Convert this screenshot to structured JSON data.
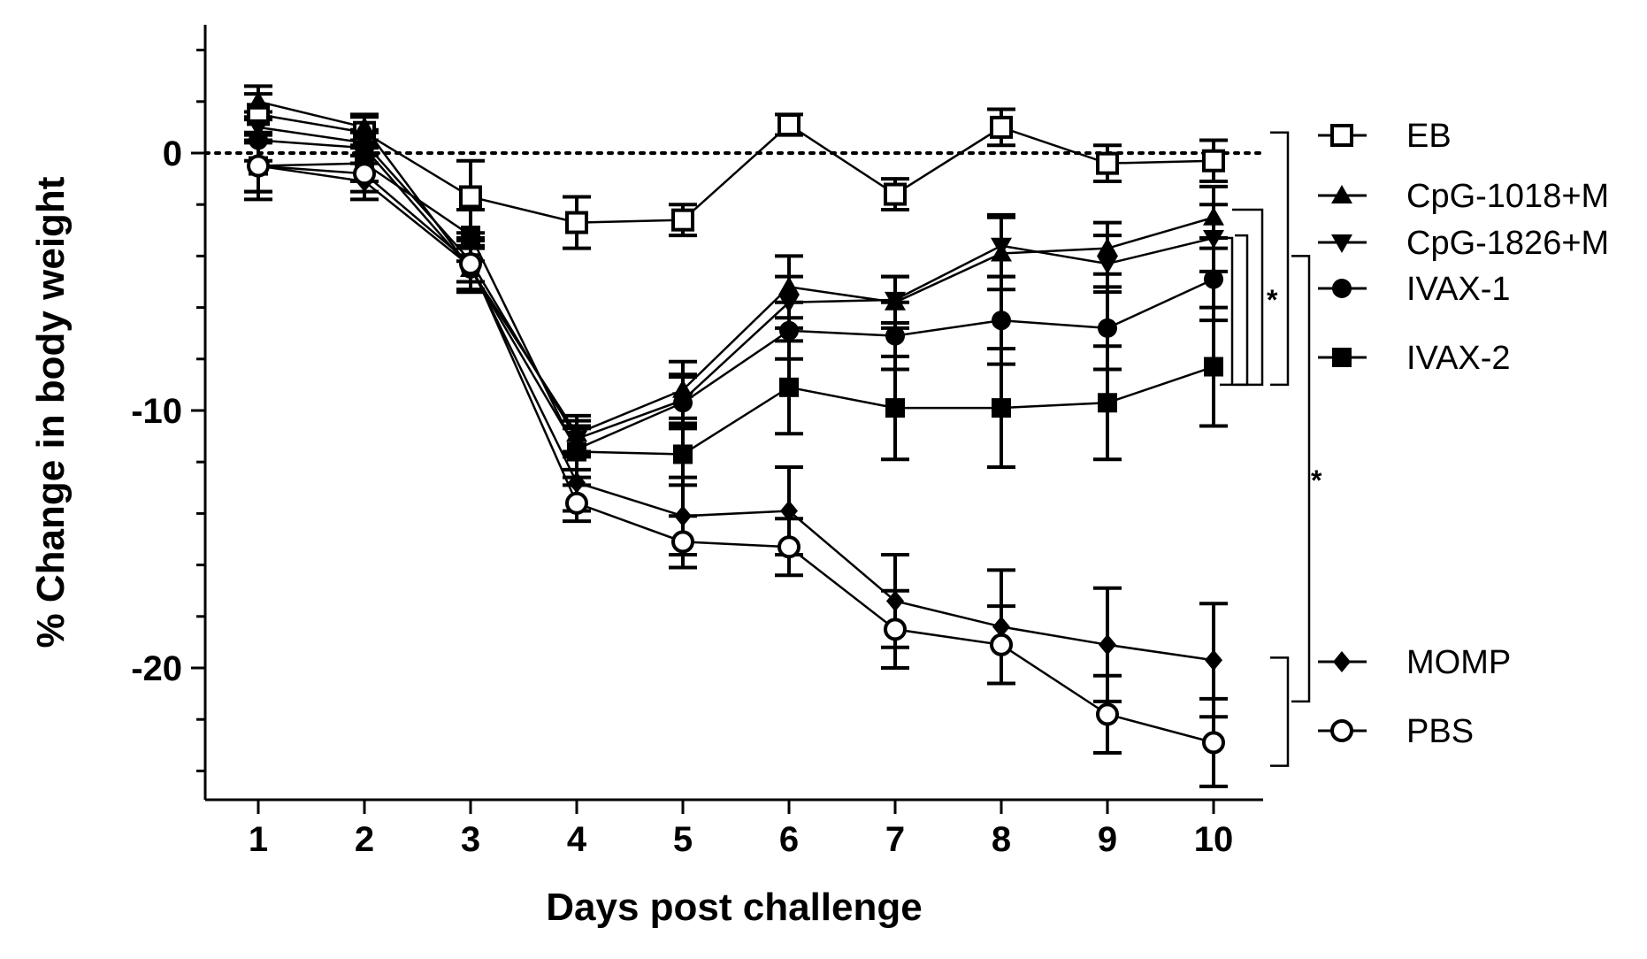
{
  "chart_data": {
    "type": "line",
    "title": "",
    "xlabel": "Days post challenge",
    "ylabel": "% Change in body weight",
    "x": [
      1,
      2,
      3,
      4,
      5,
      6,
      7,
      8,
      9,
      10
    ],
    "x_ticks": [
      "1",
      "2",
      "3",
      "4",
      "5",
      "6",
      "7",
      "8",
      "9",
      "10"
    ],
    "y_ticks": [
      0,
      -10,
      -20
    ],
    "y_tick_labels": [
      "0",
      "-10",
      "-20"
    ],
    "ylim": [
      -25,
      5
    ],
    "xlim": [
      0.5,
      10.5
    ],
    "reference_line": {
      "y": 0,
      "style": "dotted"
    },
    "legend_position": "right",
    "series": [
      {
        "name": "EB",
        "marker": "open-square",
        "values": [
          1.5,
          0.8,
          -1.7,
          -2.7,
          -2.6,
          1.1,
          -1.6,
          1.0,
          -0.4,
          -0.3
        ],
        "errors": [
          0.8,
          0.6,
          1.4,
          1.0,
          0.6,
          0.4,
          0.6,
          0.7,
          0.7,
          0.8
        ]
      },
      {
        "name": "CpG-1018+M",
        "marker": "triangle-up",
        "values": [
          2.0,
          1.0,
          -4.5,
          -10.9,
          -9.2,
          -5.2,
          -5.8,
          -3.9,
          -3.7,
          -2.5
        ],
        "errors": [
          0.6,
          0.5,
          0.8,
          0.7,
          1.1,
          1.2,
          1.0,
          1.4,
          1.0,
          1.2
        ]
      },
      {
        "name": "CpG-1826+M",
        "marker": "triangle-down",
        "values": [
          1.0,
          0.4,
          -4.2,
          -11.1,
          -9.6,
          -5.8,
          -5.7,
          -3.6,
          -4.3,
          -3.3
        ],
        "errors": [
          0.6,
          0.5,
          0.8,
          0.7,
          1.0,
          1.0,
          0.9,
          1.2,
          1.1,
          1.3
        ]
      },
      {
        "name": "IVAX-1",
        "marker": "filled-circle",
        "values": [
          0.5,
          0.2,
          -4.5,
          -11.5,
          -9.7,
          -6.9,
          -7.1,
          -6.5,
          -6.8,
          -4.9
        ],
        "errors": [
          0.8,
          0.6,
          0.9,
          0.8,
          1.0,
          1.1,
          1.3,
          1.7,
          1.6,
          1.6
        ]
      },
      {
        "name": "IVAX-2",
        "marker": "filled-square",
        "values": [
          -0.5,
          -0.4,
          -3.2,
          -11.6,
          -11.7,
          -9.1,
          -9.9,
          -9.9,
          -9.7,
          -8.3
        ],
        "errors": [
          1.0,
          0.7,
          1.0,
          1.0,
          1.2,
          1.8,
          2.0,
          2.3,
          2.2,
          2.3
        ]
      },
      {
        "name": "MOMP",
        "marker": "filled-diamond",
        "values": [
          -0.5,
          -1.1,
          -4.4,
          -12.8,
          -14.1,
          -13.9,
          -17.4,
          -18.4,
          -19.1,
          -19.7
        ],
        "errors": [
          1.0,
          0.7,
          1.0,
          1.1,
          1.5,
          1.7,
          1.8,
          2.2,
          2.2,
          2.2
        ]
      },
      {
        "name": "PBS",
        "marker": "open-circle",
        "values": [
          -0.5,
          -0.8,
          -4.3,
          -13.6,
          -15.1,
          -15.3,
          -18.5,
          -19.1,
          -21.8,
          -22.9
        ],
        "errors": [
          1.3,
          0.7,
          1.0,
          0.7,
          1.0,
          1.1,
          1.5,
          1.5,
          1.5,
          1.7
        ]
      }
    ],
    "significance_annotations": [
      {
        "label": "*",
        "groups": [
          "CpG-1018+M",
          "CpG-1826+M",
          "IVAX-1",
          "IVAX-2",
          "EB"
        ]
      },
      {
        "label": "*",
        "groups": [
          "EB",
          "CpG-1018+M",
          "CpG-1826+M",
          "IVAX-1",
          "IVAX-2",
          "MOMP",
          "PBS"
        ]
      }
    ]
  }
}
